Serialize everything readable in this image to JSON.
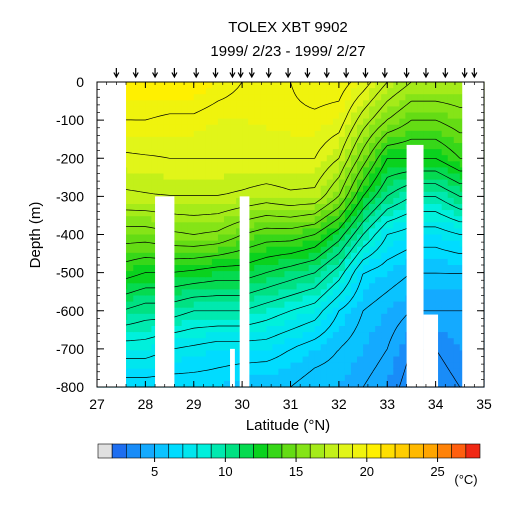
{
  "chart_data": {
    "type": "contour",
    "title": "TOLEX XBT 9902",
    "subtitle": "1999/ 2/23 - 1999/ 2/27",
    "xlabel": "Latitude (°N)",
    "ylabel": "Depth (m)",
    "xlim": [
      27,
      35
    ],
    "ylim": [
      -800,
      0
    ],
    "x_ticks": [
      27,
      28,
      29,
      30,
      31,
      32,
      33,
      34,
      35
    ],
    "x_tick_labels": [
      "27",
      "28",
      "29",
      "30",
      "31",
      "32",
      "33",
      "34",
      "35"
    ],
    "y_ticks": [
      0,
      -100,
      -200,
      -300,
      -400,
      -500,
      -600,
      -700,
      -800
    ],
    "y_tick_labels": [
      "0",
      "-100",
      "-200",
      "-300",
      "-400",
      "-500",
      "-600",
      "-700",
      "-800"
    ],
    "xbt_station_latitudes": [
      27.4,
      27.8,
      28.2,
      28.6,
      29.05,
      29.45,
      29.8,
      29.97,
      30.2,
      30.55,
      30.95,
      31.35,
      31.75,
      32.15,
      32.55,
      32.95,
      33.4,
      33.8,
      34.2,
      34.6,
      34.8
    ],
    "colorbar": {
      "min": 2,
      "max": 28,
      "step": 1,
      "tick_values": [
        5,
        10,
        15,
        20,
        25
      ],
      "tick_labels": [
        "5",
        "10",
        "15",
        "20",
        "25"
      ],
      "unit": "(°C)"
    },
    "temperature_field": {
      "latitudes": [
        27.5,
        28,
        28.5,
        29,
        29.5,
        30,
        30.5,
        31,
        31.5,
        32,
        32.5,
        33,
        33.5,
        34,
        34.5
      ],
      "depths": [
        0,
        -100,
        -200,
        -300,
        -400,
        -500,
        -600,
        -700,
        -800
      ],
      "values_degC": [
        [
          21,
          21,
          21,
          21,
          20.5,
          20,
          20,
          20,
          20.5,
          20.5,
          19.5,
          18,
          17,
          17,
          17
        ],
        [
          20,
          20,
          19.8,
          19.8,
          19.5,
          19.5,
          19.6,
          19.8,
          19.8,
          19.5,
          17.5,
          16,
          15,
          15,
          15.5
        ],
        [
          18.8,
          18.9,
          19,
          19,
          19,
          19,
          19,
          19,
          19,
          18,
          15.5,
          13,
          13,
          13,
          14
        ],
        [
          17.8,
          17.9,
          18,
          18,
          18,
          17.8,
          17.5,
          17.8,
          17.7,
          16,
          13,
          11,
          10,
          10,
          11
        ],
        [
          15.5,
          15.5,
          15.8,
          16,
          15.8,
          15,
          14.5,
          14.5,
          14,
          12.5,
          10,
          8,
          7.5,
          7.5,
          8
        ],
        [
          13.5,
          13,
          13,
          12.8,
          12.5,
          12.5,
          12,
          11.5,
          11,
          9.5,
          7,
          6.5,
          6,
          6,
          6
        ],
        [
          11,
          10.5,
          10.5,
          10,
          10,
          10,
          9.5,
          9,
          8.5,
          7,
          6,
          5.5,
          5,
          5,
          5
        ],
        [
          8.5,
          8.5,
          8,
          7.8,
          7.5,
          7.5,
          7.5,
          7,
          6.5,
          6,
          5.5,
          5,
          4,
          4,
          4.5
        ],
        [
          6.5,
          6.5,
          6.5,
          6.5,
          6.5,
          6.2,
          6,
          6,
          5.5,
          5.5,
          5,
          4.5,
          3.5,
          3.5,
          4
        ]
      ]
    },
    "missing_data_regions": [
      {
        "lat_from": 27.0,
        "lat_to": 27.6,
        "depth_from": 0,
        "depth_to": -800
      },
      {
        "lat_from": 34.55,
        "lat_to": 35.0,
        "depth_from": 0,
        "depth_to": -800
      },
      {
        "lat_from": 28.2,
        "lat_to": 28.6,
        "depth_from": -300,
        "depth_to": -800
      },
      {
        "lat_from": 29.95,
        "lat_to": 30.15,
        "depth_from": -300,
        "depth_to": -800
      },
      {
        "lat_from": 29.75,
        "lat_to": 29.85,
        "depth_from": -700,
        "depth_to": -800
      },
      {
        "lat_from": 33.4,
        "lat_to": 33.75,
        "depth_from": -165,
        "depth_to": -800
      },
      {
        "lat_from": 33.75,
        "lat_to": 34.05,
        "depth_from": -610,
        "depth_to": -800
      }
    ]
  }
}
